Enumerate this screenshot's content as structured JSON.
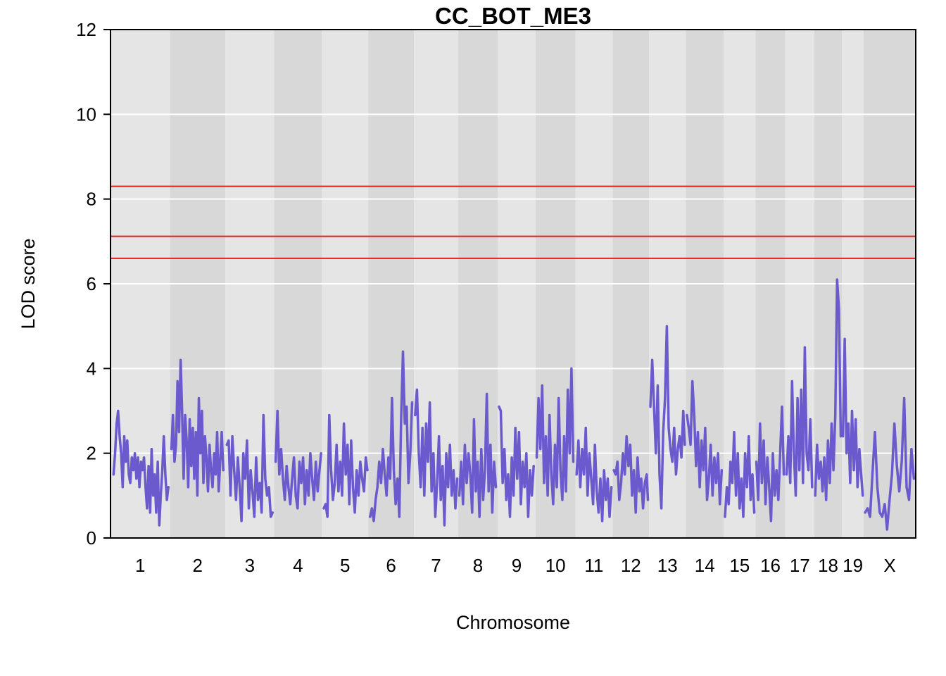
{
  "chart_data": {
    "type": "line",
    "title": "CC_BOT_ME3",
    "xlabel": "Chromosome",
    "ylabel": "LOD score",
    "ylim": [
      0,
      12
    ],
    "yticks": [
      0,
      2,
      4,
      6,
      8,
      10,
      12
    ],
    "grid": true,
    "colors": {
      "line": "#6a5acd",
      "threshold": "#e0221c",
      "band_light": "#e5e5e5",
      "band_dark": "#d8d8d8",
      "gridline": "#ffffff"
    },
    "thresholds": [
      8.3,
      7.12,
      6.6
    ],
    "chromosomes": [
      {
        "label": "1",
        "start": 0,
        "end": 195
      },
      {
        "label": "2",
        "start": 195,
        "end": 377
      },
      {
        "label": "3",
        "start": 377,
        "end": 537
      },
      {
        "label": "4",
        "start": 537,
        "end": 694
      },
      {
        "label": "5",
        "start": 694,
        "end": 846
      },
      {
        "label": "6",
        "start": 846,
        "end": 996
      },
      {
        "label": "7",
        "start": 996,
        "end": 1141
      },
      {
        "label": "8",
        "start": 1141,
        "end": 1271
      },
      {
        "label": "9",
        "start": 1271,
        "end": 1395
      },
      {
        "label": "10",
        "start": 1395,
        "end": 1526
      },
      {
        "label": "11",
        "start": 1526,
        "end": 1648
      },
      {
        "label": "12",
        "start": 1648,
        "end": 1768
      },
      {
        "label": "13",
        "start": 1768,
        "end": 1888
      },
      {
        "label": "14",
        "start": 1888,
        "end": 2013
      },
      {
        "label": "15",
        "start": 2013,
        "end": 2117
      },
      {
        "label": "16",
        "start": 2117,
        "end": 2215
      },
      {
        "label": "17",
        "start": 2215,
        "end": 2310
      },
      {
        "label": "18",
        "start": 2310,
        "end": 2401
      },
      {
        "label": "19",
        "start": 2401,
        "end": 2472
      },
      {
        "label": "X",
        "start": 2472,
        "end": 2643
      }
    ],
    "series": [
      {
        "chromosome": "1",
        "x": [
          10,
          15,
          20,
          25,
          30,
          35,
          40,
          45,
          50,
          55,
          60,
          65,
          70,
          75,
          80,
          85,
          90,
          95,
          100,
          105,
          110,
          115,
          120,
          125,
          130,
          135,
          140,
          145,
          150,
          155,
          160,
          165,
          170,
          175,
          180,
          185,
          190
        ],
        "values": [
          1.5,
          2.0,
          2.7,
          3.0,
          2.4,
          2.0,
          1.2,
          2.4,
          1.8,
          2.3,
          1.5,
          1.3,
          1.9,
          1.6,
          2.0,
          1.4,
          1.9,
          1.2,
          1.8,
          1.6,
          1.9,
          1.2,
          0.7,
          1.7,
          0.6,
          2.1,
          1.0,
          1.5,
          0.6,
          1.8,
          0.3,
          1.0,
          1.6,
          2.4,
          1.5,
          0.9,
          1.2
        ]
      },
      {
        "chromosome": "2",
        "x": [
          200,
          205,
          210,
          215,
          220,
          225,
          230,
          235,
          240,
          245,
          250,
          255,
          260,
          265,
          270,
          275,
          280,
          285,
          290,
          295,
          300,
          305,
          310,
          315,
          320,
          325,
          330,
          335,
          340,
          345,
          350,
          355,
          360,
          365,
          370
        ],
        "values": [
          2.1,
          2.9,
          1.8,
          2.2,
          3.7,
          2.5,
          4.2,
          3.0,
          1.4,
          2.9,
          2.3,
          1.2,
          2.8,
          1.7,
          2.6,
          1.4,
          2.5,
          1.0,
          3.3,
          2.0,
          3.0,
          1.3,
          2.4,
          1.9,
          1.1,
          2.2,
          1.6,
          1.2,
          2.0,
          1.5,
          2.5,
          1.1,
          1.8,
          2.5,
          1.6
        ]
      },
      {
        "chromosome": "3",
        "x": [
          382,
          388,
          394,
          400,
          406,
          412,
          418,
          424,
          430,
          436,
          442,
          448,
          454,
          460,
          466,
          472,
          478,
          484,
          490,
          496,
          502,
          508,
          514,
          520,
          526,
          532
        ],
        "values": [
          2.2,
          2.3,
          1.0,
          2.4,
          1.6,
          0.9,
          1.9,
          1.2,
          0.4,
          2.0,
          1.4,
          2.3,
          0.7,
          1.6,
          1.1,
          0.5,
          1.9,
          0.9,
          1.3,
          0.6,
          2.9,
          1.4,
          1.0,
          1.2,
          0.5,
          0.6
        ]
      },
      {
        "chromosome": "4",
        "x": [
          542,
          548,
          554,
          560,
          566,
          572,
          578,
          584,
          590,
          596,
          602,
          608,
          614,
          620,
          626,
          632,
          638,
          644,
          650,
          656,
          662,
          668,
          674,
          680,
          686,
          691
        ],
        "values": [
          1.8,
          3.0,
          1.5,
          2.1,
          1.4,
          0.9,
          1.7,
          1.2,
          0.8,
          1.4,
          1.9,
          1.0,
          0.7,
          1.8,
          1.3,
          1.9,
          0.8,
          1.6,
          1.0,
          2.0,
          1.4,
          0.9,
          1.8,
          1.1,
          1.6,
          2.0
        ]
      },
      {
        "chromosome": "5",
        "x": [
          700,
          706,
          712,
          718,
          724,
          730,
          736,
          742,
          748,
          754,
          760,
          766,
          772,
          778,
          784,
          790,
          796,
          802,
          808,
          814,
          820,
          826,
          832,
          838,
          843
        ],
        "values": [
          0.7,
          0.8,
          0.5,
          2.9,
          1.6,
          0.9,
          1.3,
          2.2,
          1.1,
          1.8,
          1.0,
          2.7,
          1.5,
          2.2,
          0.8,
          2.3,
          1.2,
          0.6,
          1.6,
          1.0,
          1.8,
          1.4,
          1.1,
          1.9,
          1.6
        ]
      },
      {
        "chromosome": "6",
        "x": [
          852,
          858,
          864,
          870,
          876,
          882,
          888,
          894,
          900,
          906,
          912,
          918,
          924,
          930,
          936,
          942,
          948,
          954,
          960,
          966,
          972,
          978,
          984,
          990
        ],
        "values": [
          0.5,
          0.7,
          0.4,
          0.9,
          1.2,
          1.8,
          1.3,
          2.1,
          1.5,
          1.0,
          1.9,
          1.4,
          3.3,
          1.6,
          0.8,
          1.4,
          0.5,
          2.8,
          4.4,
          2.7,
          3.1,
          1.3,
          2.0,
          3.2
        ]
      },
      {
        "chromosome": "7",
        "x": [
          1000,
          1006,
          1012,
          1018,
          1024,
          1030,
          1036,
          1042,
          1048,
          1054,
          1060,
          1066,
          1072,
          1078,
          1084,
          1090,
          1096,
          1102,
          1108,
          1114,
          1120,
          1126,
          1132,
          1138
        ],
        "values": [
          2.9,
          3.5,
          2.0,
          1.2,
          2.6,
          1.0,
          2.7,
          1.8,
          3.2,
          1.1,
          2.0,
          0.5,
          1.3,
          2.4,
          0.9,
          1.7,
          0.3,
          2.0,
          1.2,
          2.2,
          1.0,
          1.6,
          0.7,
          1.4
        ]
      },
      {
        "chromosome": "8",
        "x": [
          1145,
          1151,
          1157,
          1163,
          1169,
          1175,
          1181,
          1187,
          1193,
          1199,
          1205,
          1211,
          1217,
          1223,
          1229,
          1235,
          1241,
          1247,
          1253,
          1259,
          1265
        ],
        "values": [
          1.0,
          1.8,
          0.8,
          2.2,
          1.3,
          2.0,
          1.5,
          0.6,
          2.8,
          1.1,
          1.8,
          0.5,
          2.1,
          0.9,
          1.6,
          3.4,
          1.1,
          2.2,
          0.6,
          1.8,
          1.2
        ]
      },
      {
        "chromosome": "9",
        "x": [
          1275,
          1281,
          1287,
          1293,
          1299,
          1305,
          1311,
          1317,
          1323,
          1329,
          1335,
          1341,
          1347,
          1353,
          1359,
          1365,
          1371,
          1377,
          1383,
          1389
        ],
        "values": [
          3.1,
          3.0,
          1.3,
          2.1,
          0.9,
          1.5,
          0.5,
          1.9,
          1.0,
          2.6,
          1.4,
          2.5,
          0.8,
          1.8,
          1.2,
          2.0,
          0.5,
          1.6,
          1.0,
          1.7
        ]
      },
      {
        "chromosome": "10",
        "x": [
          1399,
          1405,
          1411,
          1417,
          1423,
          1429,
          1435,
          1441,
          1447,
          1453,
          1459,
          1465,
          1471,
          1477,
          1483,
          1489,
          1495,
          1501,
          1507,
          1513,
          1519
        ],
        "values": [
          1.9,
          3.3,
          2.1,
          3.6,
          1.3,
          2.4,
          1.0,
          2.9,
          1.5,
          0.8,
          2.2,
          1.2,
          3.3,
          1.6,
          0.9,
          2.4,
          1.1,
          3.5,
          2.0,
          4.0,
          1.8
        ]
      },
      {
        "chromosome": "11",
        "x": [
          1530,
          1536,
          1542,
          1548,
          1554,
          1560,
          1566,
          1572,
          1578,
          1584,
          1590,
          1596,
          1602,
          1608,
          1614,
          1620,
          1626,
          1632,
          1638,
          1644
        ],
        "values": [
          1.5,
          2.3,
          1.2,
          2.1,
          1.5,
          2.6,
          1.0,
          2.0,
          1.4,
          0.8,
          2.2,
          1.1,
          0.6,
          1.4,
          0.4,
          1.6,
          0.9,
          1.4,
          0.5,
          1.2
        ]
      },
      {
        "chromosome": "12",
        "x": [
          1652,
          1658,
          1664,
          1670,
          1676,
          1682,
          1688,
          1694,
          1700,
          1706,
          1712,
          1718,
          1724,
          1730,
          1736,
          1742,
          1748,
          1754,
          1760,
          1764
        ],
        "values": [
          1.6,
          1.5,
          1.8,
          0.9,
          1.3,
          2.0,
          1.5,
          2.4,
          1.7,
          2.2,
          1.0,
          1.6,
          0.6,
          1.9,
          1.1,
          1.4,
          0.7,
          1.3,
          1.5,
          0.9
        ]
      },
      {
        "chromosome": "13",
        "x": [
          1772,
          1778,
          1784,
          1790,
          1796,
          1802,
          1808,
          1814,
          1820,
          1826,
          1832,
          1838,
          1844,
          1850,
          1856,
          1862,
          1868,
          1874,
          1880,
          1885
        ],
        "values": [
          3.1,
          4.2,
          3.1,
          2.0,
          3.6,
          1.5,
          0.7,
          2.5,
          3.3,
          5.0,
          2.6,
          2.1,
          1.8,
          2.6,
          1.5,
          2.1,
          2.4,
          1.9,
          3.0,
          2.2
        ]
      },
      {
        "chromosome": "14",
        "x": [
          1892,
          1898,
          1904,
          1910,
          1916,
          1922,
          1928,
          1934,
          1940,
          1946,
          1952,
          1958,
          1964,
          1970,
          1976,
          1982,
          1988,
          1994,
          2000,
          2006
        ],
        "values": [
          2.9,
          2.6,
          2.2,
          3.7,
          2.9,
          1.7,
          2.5,
          1.2,
          2.3,
          1.6,
          2.6,
          0.9,
          1.4,
          2.2,
          1.0,
          1.9,
          1.3,
          2.0,
          0.8,
          1.6
        ]
      },
      {
        "chromosome": "15",
        "x": [
          2017,
          2023,
          2029,
          2035,
          2041,
          2047,
          2053,
          2059,
          2065,
          2071,
          2077,
          2083,
          2089,
          2095,
          2101,
          2107,
          2113
        ],
        "values": [
          0.5,
          1.2,
          0.8,
          1.8,
          1.3,
          2.5,
          1.0,
          2.0,
          0.7,
          1.4,
          0.5,
          2.0,
          1.2,
          2.4,
          0.9,
          1.5,
          0.6
        ]
      },
      {
        "chromosome": "16",
        "x": [
          2120,
          2126,
          2132,
          2138,
          2144,
          2150,
          2156,
          2162,
          2168,
          2174,
          2180,
          2186,
          2192,
          2198,
          2204,
          2210
        ],
        "values": [
          1.8,
          0.9,
          2.7,
          1.3,
          2.3,
          0.8,
          1.9,
          1.2,
          0.4,
          2.0,
          1.0,
          1.6,
          0.9,
          2.0,
          3.1,
          1.5
        ]
      },
      {
        "chromosome": "17",
        "x": [
          2219,
          2225,
          2231,
          2237,
          2243,
          2249,
          2255,
          2261,
          2267,
          2273,
          2279,
          2285,
          2291,
          2297,
          2303
        ],
        "values": [
          1.5,
          2.4,
          1.3,
          3.7,
          2.0,
          1.0,
          3.3,
          1.6,
          3.5,
          1.3,
          4.5,
          2.0,
          1.6,
          2.8,
          1.2
        ]
      },
      {
        "chromosome": "18",
        "x": [
          2313,
          2319,
          2325,
          2331,
          2337,
          2343,
          2349,
          2355,
          2361,
          2367,
          2373,
          2379,
          2385,
          2391,
          2397
        ],
        "values": [
          1.0,
          2.2,
          1.4,
          1.8,
          1.1,
          1.9,
          0.9,
          2.3,
          1.3,
          2.7,
          1.6,
          2.9,
          6.1,
          5.4,
          2.4
        ]
      },
      {
        "chromosome": "19",
        "x": [
          2404,
          2410,
          2416,
          2422,
          2428,
          2434,
          2440,
          2446,
          2452,
          2458,
          2464,
          2469
        ],
        "values": [
          2.4,
          4.7,
          2.0,
          2.7,
          1.3,
          3.0,
          1.6,
          2.8,
          1.2,
          2.1,
          1.5,
          1.0
        ]
      },
      {
        "chromosome": "X",
        "x": [
          2477,
          2485,
          2493,
          2501,
          2509,
          2517,
          2525,
          2533,
          2541,
          2549,
          2557,
          2565,
          2573,
          2581,
          2589,
          2597,
          2605,
          2613,
          2621,
          2629,
          2637
        ],
        "values": [
          0.6,
          0.7,
          0.5,
          1.5,
          2.5,
          1.2,
          0.6,
          0.5,
          0.8,
          0.2,
          0.9,
          1.5,
          2.7,
          1.7,
          1.1,
          1.8,
          3.3,
          1.2,
          0.9,
          2.1,
          1.4
        ]
      }
    ]
  }
}
